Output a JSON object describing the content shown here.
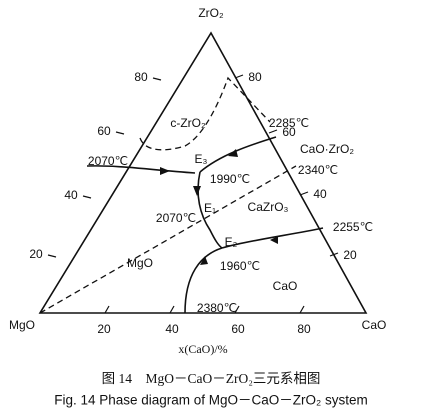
{
  "vertices": {
    "top": "ZrO₂",
    "left": "MgO",
    "right": "CaO"
  },
  "bottom_ticks": [
    "20",
    "40",
    "60",
    "80"
  ],
  "left_ticks": [
    "20",
    "40",
    "60",
    "80"
  ],
  "right_ticks": [
    "80",
    "60",
    "40",
    "20"
  ],
  "axis_label": "x(CaO)/%",
  "labels": [
    "c-ZrO₂",
    "2285℃",
    "CaO·ZrO₂",
    "2070℃",
    "E₃",
    "1990℃",
    "2340℃",
    "E₁",
    "2070℃",
    "CaZrO₃",
    "2255℃",
    "E₂",
    "MgO",
    "1960℃",
    "CaO",
    "2380℃"
  ],
  "caption_cn": "图 14　MgO－CaO－ZrO₂三元系相图",
  "caption_en": "Fig. 14 Phase diagram of MgO－CaO－ZrO₂ system"
}
